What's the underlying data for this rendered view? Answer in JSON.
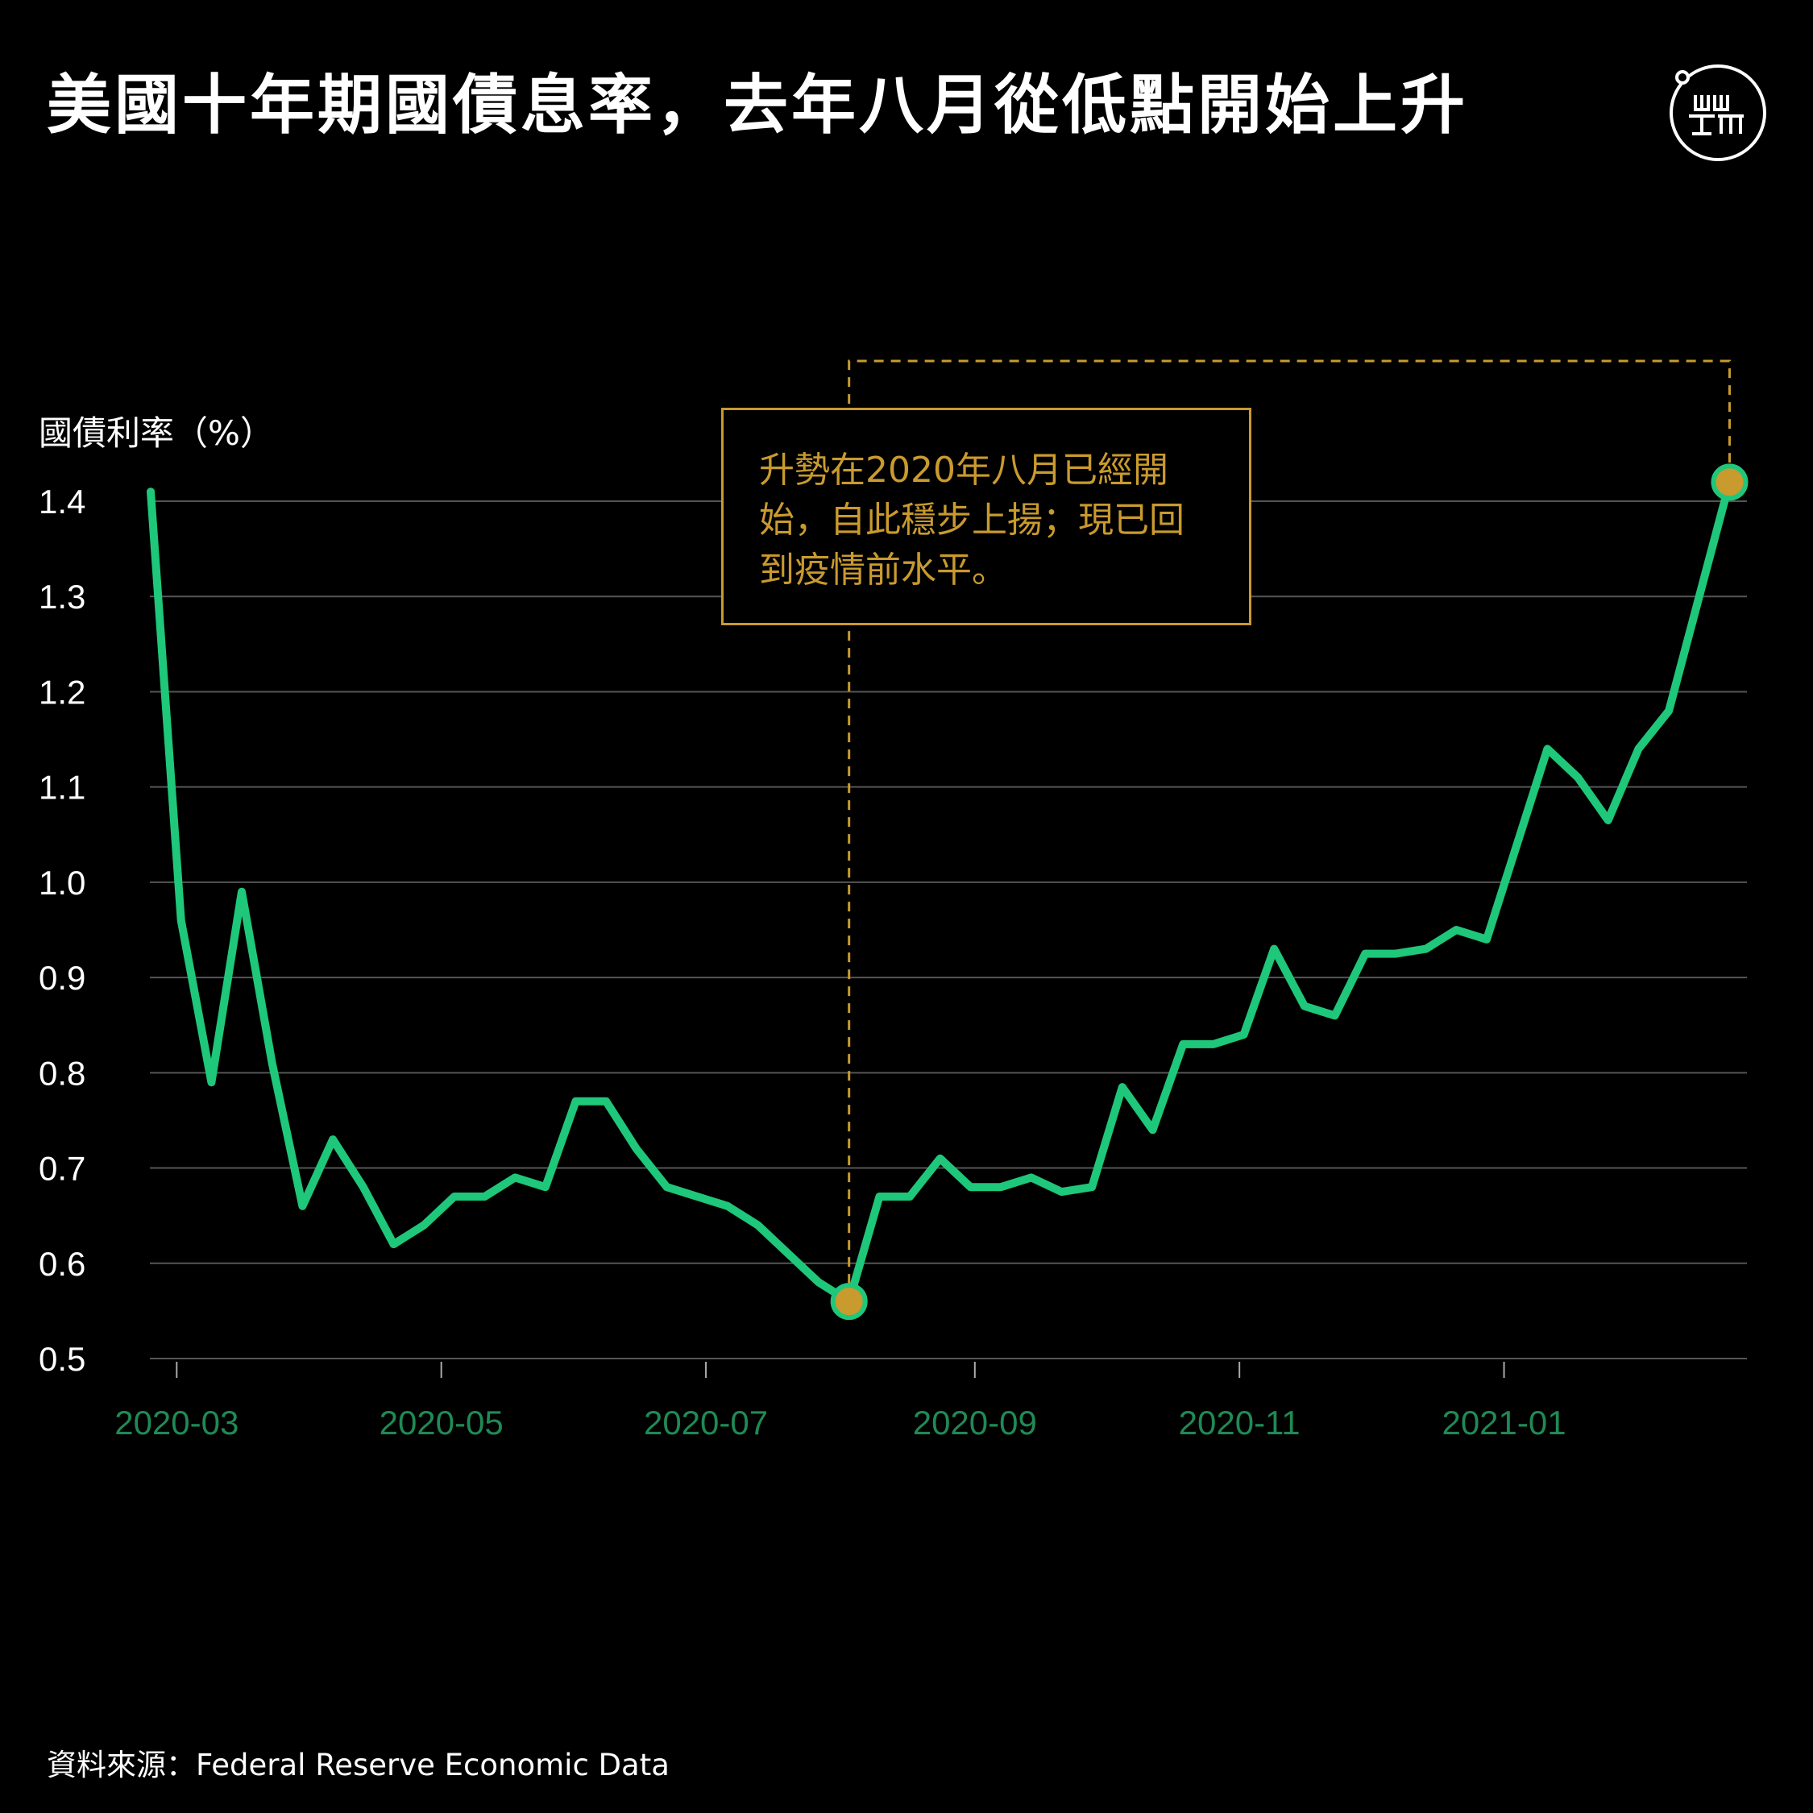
{
  "header": {
    "title": "美國十年期國債息率，去年八月從低點開始上升"
  },
  "logo": {
    "icon": "initium-logo-icon"
  },
  "annotation": {
    "text": "升勢在2020年八月已經開始，自此穩步上揚；現已回到疫情前水平。"
  },
  "footer": {
    "source": "資料來源：Federal Reserve Economic Data"
  },
  "colors": {
    "line": "#1ec77a",
    "highlight": "#c99a2e",
    "grid": "#555555",
    "xtick": "#1f8a55"
  },
  "chart_data": {
    "type": "line",
    "title": "美國十年期國債息率，去年八月從低點開始上升",
    "ylabel": "國債利率（%）",
    "xlabel": "",
    "ylim": [
      0.5,
      1.4
    ],
    "yticks": [
      "0.5",
      "0.6",
      "0.7",
      "0.8",
      "0.9",
      "1.0",
      "1.1",
      "1.2",
      "1.3",
      "1.4"
    ],
    "xlim": [
      "2020-02-24",
      "2021-02-26"
    ],
    "xticks": [
      "2020-03",
      "2020-05",
      "2020-07",
      "2020-09",
      "2020-11",
      "2021-01"
    ],
    "grid": true,
    "series": [
      {
        "x": [
          "2020-02-24",
          "2020-03-02",
          "2020-03-09",
          "2020-03-16",
          "2020-03-23",
          "2020-03-30",
          "2020-04-06",
          "2020-04-13",
          "2020-04-20",
          "2020-04-27",
          "2020-05-04",
          "2020-05-11",
          "2020-05-18",
          "2020-05-25",
          "2020-06-01",
          "2020-06-08",
          "2020-06-15",
          "2020-06-22",
          "2020-06-29",
          "2020-07-06",
          "2020-07-13",
          "2020-07-20",
          "2020-07-27",
          "2020-08-03",
          "2020-08-10",
          "2020-08-17",
          "2020-08-24",
          "2020-08-31",
          "2020-09-07",
          "2020-09-14",
          "2020-09-21",
          "2020-09-28",
          "2020-10-05",
          "2020-10-12",
          "2020-10-19",
          "2020-10-26",
          "2020-11-02",
          "2020-11-09",
          "2020-11-16",
          "2020-11-23",
          "2020-11-30",
          "2020-12-07",
          "2020-12-14",
          "2020-12-21",
          "2020-12-28",
          "2021-01-04",
          "2021-01-11",
          "2021-01-18",
          "2021-01-25",
          "2021-02-01",
          "2021-02-08",
          "2021-02-15",
          "2021-02-22"
        ],
        "values": [
          1.41,
          0.96,
          0.79,
          0.99,
          0.81,
          0.66,
          0.73,
          0.68,
          0.62,
          0.64,
          0.67,
          0.67,
          0.69,
          0.68,
          0.77,
          0.77,
          0.72,
          0.68,
          0.67,
          0.66,
          0.64,
          0.61,
          0.58,
          0.56,
          0.67,
          0.67,
          0.71,
          0.68,
          0.68,
          0.69,
          0.675,
          0.68,
          0.785,
          0.74,
          0.83,
          0.83,
          0.84,
          0.93,
          0.87,
          0.86,
          0.925,
          0.925,
          0.93,
          0.95,
          0.94,
          1.04,
          1.14,
          1.11,
          1.065,
          1.14,
          1.18,
          1.3,
          1.42
        ]
      }
    ],
    "highlight_points": [
      {
        "x": "2020-08-03",
        "y": 0.56
      },
      {
        "x": "2021-02-22",
        "y": 1.42
      }
    ]
  }
}
